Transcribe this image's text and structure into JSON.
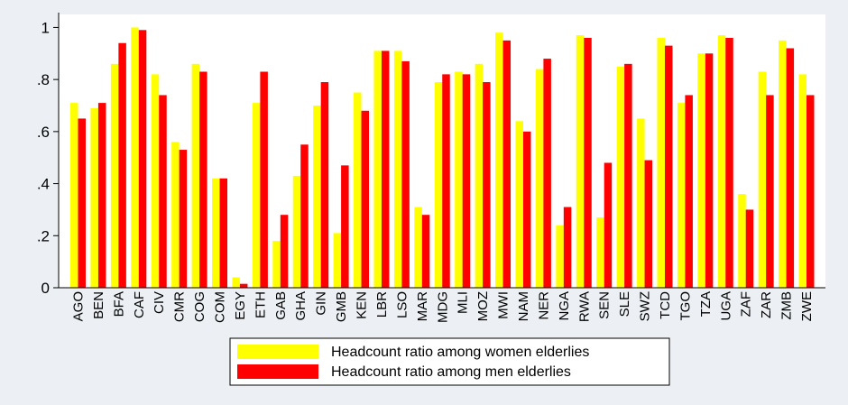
{
  "chart_data": {
    "type": "bar",
    "title": "",
    "xlabel": "",
    "ylabel": "",
    "ylim": [
      0,
      1.05
    ],
    "yticks": [
      0,
      0.2,
      0.4,
      0.6,
      0.8,
      1
    ],
    "ytick_labels": [
      "0",
      ".2",
      ".4",
      ".6",
      ".8",
      "1"
    ],
    "grid": false,
    "legend_position": "bottom-center",
    "categories": [
      "AGO",
      "BEN",
      "BFA",
      "CAF",
      "CIV",
      "CMR",
      "COG",
      "COM",
      "EGY",
      "ETH",
      "GAB",
      "GHA",
      "GIN",
      "GMB",
      "KEN",
      "LBR",
      "LSO",
      "MAR",
      "MDG",
      "MLI",
      "MOZ",
      "MWI",
      "NAM",
      "NER",
      "NGA",
      "RWA",
      "SEN",
      "SLE",
      "SWZ",
      "TCD",
      "TGO",
      "TZA",
      "UGA",
      "ZAF",
      "ZAR",
      "ZMB",
      "ZWE"
    ],
    "series": [
      {
        "name": "Headcount ratio among women elderlies",
        "color": "#ffff00",
        "values": [
          0.71,
          0.69,
          0.86,
          1.0,
          0.82,
          0.56,
          0.86,
          0.42,
          0.04,
          0.71,
          0.18,
          0.43,
          0.7,
          0.21,
          0.75,
          0.91,
          0.91,
          0.31,
          0.79,
          0.83,
          0.86,
          0.98,
          0.64,
          0.84,
          0.24,
          0.97,
          0.27,
          0.85,
          0.65,
          0.96,
          0.71,
          0.9,
          0.97,
          0.36,
          0.83,
          0.95,
          0.82
        ]
      },
      {
        "name": "Headcount ratio among men elderlies",
        "color": "#ff0000",
        "values": [
          0.65,
          0.71,
          0.94,
          0.99,
          0.74,
          0.53,
          0.83,
          0.42,
          0.015,
          0.83,
          0.28,
          0.55,
          0.79,
          0.47,
          0.68,
          0.91,
          0.87,
          0.28,
          0.82,
          0.82,
          0.79,
          0.95,
          0.6,
          0.88,
          0.31,
          0.96,
          0.48,
          0.86,
          0.49,
          0.93,
          0.74,
          0.9,
          0.96,
          0.3,
          0.74,
          0.92,
          0.74
        ]
      }
    ]
  }
}
